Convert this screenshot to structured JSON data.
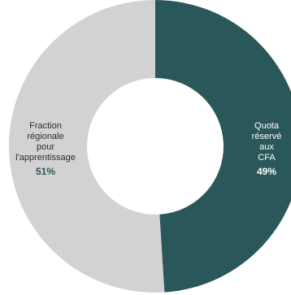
{
  "chart_data": {
    "type": "pie",
    "donut": true,
    "slices": [
      {
        "label": "Quota\nréservé\naux\nCFA",
        "value": 49,
        "value_label": "49%",
        "color": "#2a5759"
      },
      {
        "label": "Fraction\nrégionale\npour\nl'apprentissage",
        "value": 51,
        "value_label": "51%",
        "color": "#d2d2d2"
      }
    ],
    "label_colors": {
      "light_slice_text": "#2c2c2c",
      "dark_slice_text": "#ffffff"
    },
    "percent_colors": {
      "light_slice_pct": "#2a5759",
      "dark_slice_pct": "#ffffff"
    }
  }
}
